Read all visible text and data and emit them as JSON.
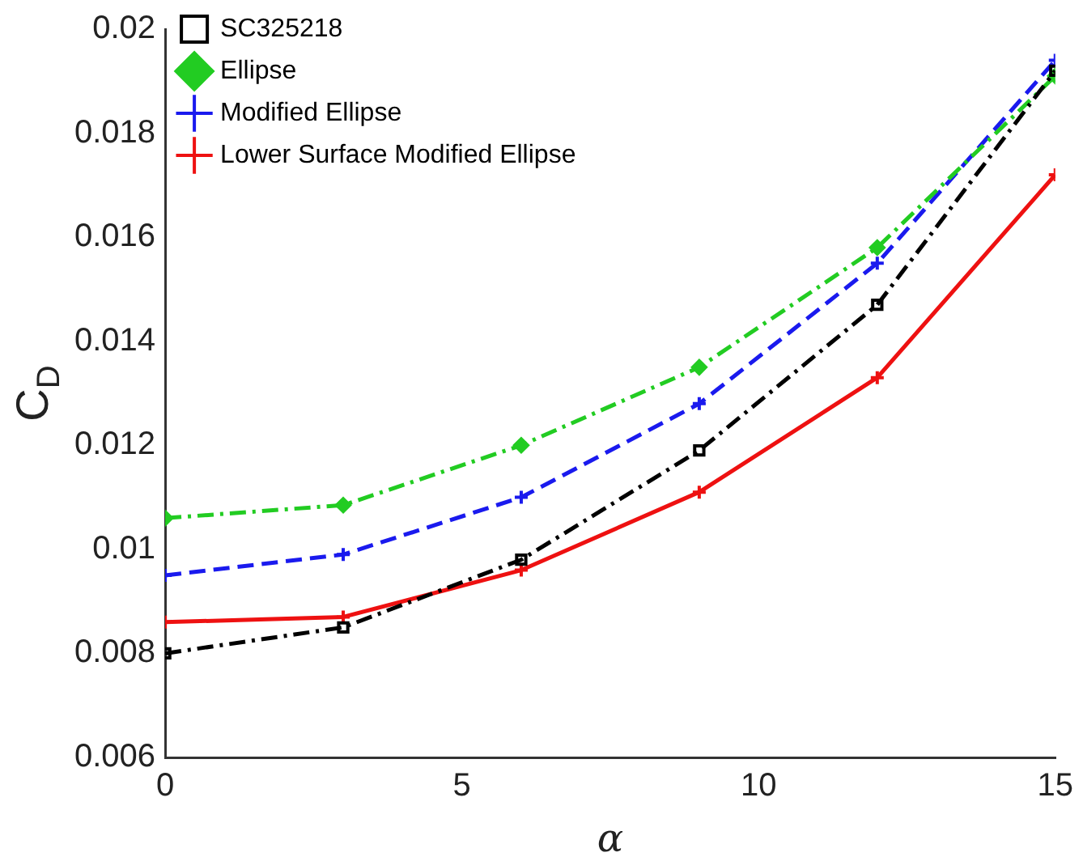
{
  "chart_data": {
    "type": "line",
    "xlabel": "α",
    "ylabel": "C$_{D}$",
    "x": [
      0,
      3,
      6,
      9,
      12,
      15
    ],
    "xlim": [
      0,
      15
    ],
    "xticks": [
      0,
      5,
      10,
      15
    ],
    "ylim": [
      0.006,
      0.02
    ],
    "yticks": [
      0.006,
      0.008,
      0.01,
      0.012,
      0.014,
      0.016,
      0.018,
      0.02
    ],
    "grid": false,
    "legend": "top left",
    "series": [
      {
        "name": "SC325218",
        "color": "#000000",
        "marker": "square",
        "line_style": "dashdot",
        "values": [
          0.008,
          0.0085,
          0.0098,
          0.0119,
          0.0147,
          0.0192
        ]
      },
      {
        "name": "Ellipse",
        "color": "#22cc22",
        "marker": "diamond",
        "line_style": "dashdot",
        "values": [
          0.0106,
          0.01085,
          0.012,
          0.0135,
          0.0158,
          0.0191
        ]
      },
      {
        "name": "Modified Ellipse",
        "color": "#1a1aee",
        "marker": "cross",
        "line_style": "dashed",
        "values": [
          0.0095,
          0.0099,
          0.011,
          0.0128,
          0.0155,
          0.0194
        ]
      },
      {
        "name": "Lower Surface Modified Ellipse",
        "color": "#ee1111",
        "marker": "cross",
        "line_style": "solid",
        "values": [
          0.0086,
          0.0087,
          0.0096,
          0.0111,
          0.0133,
          0.0172
        ]
      }
    ]
  }
}
